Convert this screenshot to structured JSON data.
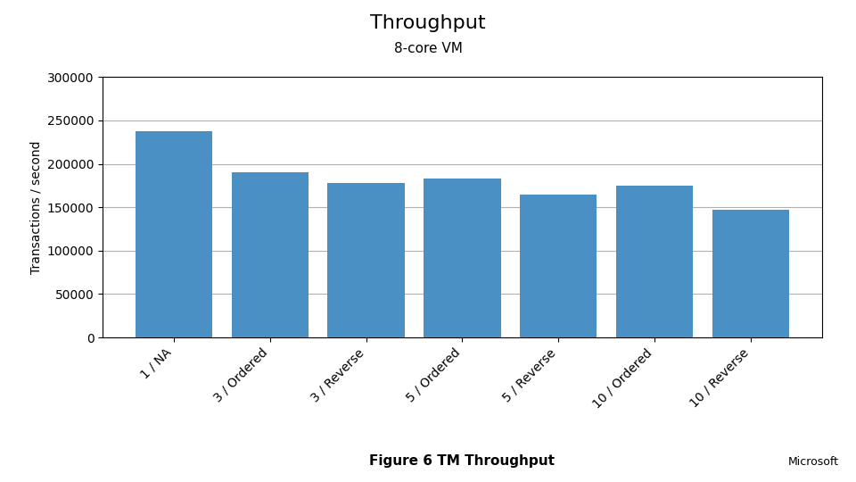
{
  "chart_data": {
    "type": "bar",
    "title": "Throughput",
    "subtitle": "8-core VM",
    "ylabel": "Transactions / second",
    "annotations": [
      "Figure 6 TM Throughput",
      "Microsoft"
    ],
    "categories": [
      "1 / NA",
      "3 / Ordered",
      "3 / Reverse",
      "5 / Ordered",
      "5 / Reverse",
      "10 / Ordered",
      "10 / Reverse"
    ],
    "values": [
      238000,
      190000,
      178000,
      183000,
      165000,
      175000,
      147000
    ],
    "color": "#4a90c4",
    "ylim": [
      0,
      300000
    ],
    "yticks": [
      0,
      50000,
      100000,
      150000,
      200000,
      250000,
      300000
    ],
    "grid": true
  }
}
